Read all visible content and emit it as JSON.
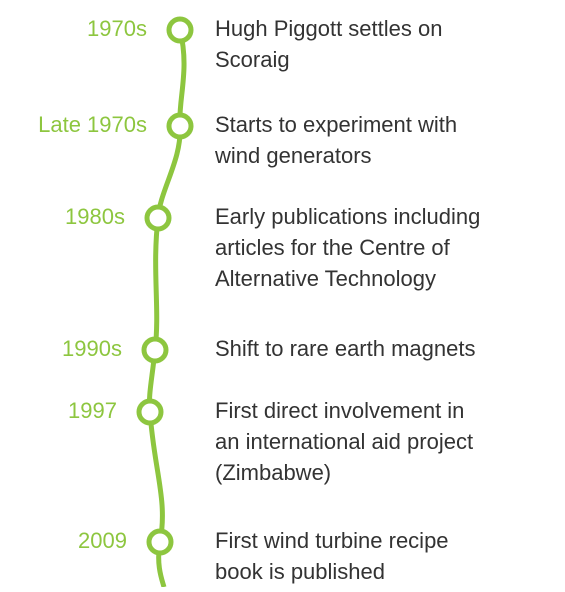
{
  "events": [
    {
      "date": "1970s",
      "lines": [
        "Hugh Piggott settles on",
        "Scoraig"
      ]
    },
    {
      "date": "Late 1970s",
      "lines": [
        "Starts to experiment with",
        "wind generators"
      ]
    },
    {
      "date": "1980s",
      "lines": [
        "Early publications including",
        "articles for the Centre of",
        "Alternative Technology"
      ]
    },
    {
      "date": "1990s",
      "lines": [
        "Shift to rare earth magnets"
      ]
    },
    {
      "date": "1997",
      "lines": [
        "First direct involvement in",
        "an international aid project",
        "(Zimbabwe)"
      ]
    },
    {
      "date": "2009",
      "lines": [
        "First wind turbine recipe",
        "book is published"
      ]
    }
  ]
}
